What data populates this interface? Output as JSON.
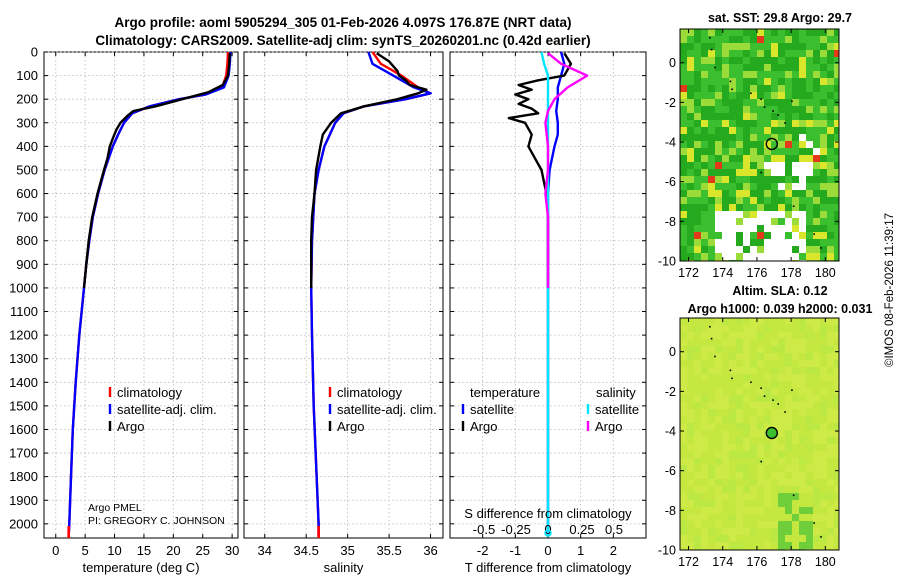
{
  "header": {
    "title_line1": "Argo profile: aoml 5905294_305 01-Feb-2026 4.097S 176.87E (NRT data)",
    "title_line2": "Climatology: CARS2009. Satellite-adj clim: synTS_20260201.nc (0.42d earlier)"
  },
  "credit": {
    "line1": "Argo PMEL",
    "line2": "PI: GREGORY C. JOHNSON"
  },
  "side_stamp": "©IMOS 08-Feb-2026 11:39:17",
  "colors": {
    "climatology": "#ff0000",
    "satellite_adj": "#0000ff",
    "argo": "#000000",
    "salinity_satellite": "#00e5ff",
    "salinity_argo": "#ff00ff"
  },
  "chart_data": [
    {
      "type": "line",
      "name": "temperature",
      "xlabel": "temperature (deg C)",
      "ylabel": "",
      "xlim": [
        -2,
        31
      ],
      "ylim": [
        2060,
        0
      ],
      "xticks": [
        0,
        5,
        10,
        15,
        20,
        25,
        30
      ],
      "xtick_labels": [
        "0",
        "5",
        "10",
        "15",
        "20",
        "25",
        "30"
      ],
      "yticks": [
        0,
        100,
        200,
        300,
        400,
        500,
        600,
        700,
        800,
        900,
        1000,
        1100,
        1200,
        1300,
        1400,
        1500,
        1600,
        1700,
        1800,
        1900,
        2000
      ],
      "ytick_labels": [
        "0",
        "100",
        "200",
        "300",
        "400",
        "500",
        "600",
        "700",
        "800",
        "900",
        "1000",
        "1100",
        "1200",
        "1300",
        "1400",
        "1500",
        "1600",
        "1700",
        "1800",
        "1900",
        "2000"
      ],
      "legend": [
        "climatology",
        "satellite-adj. clim.",
        "Argo"
      ],
      "legend_position": "lower-right",
      "series": [
        {
          "name": "climatology",
          "color": "#ff0000",
          "depth": [
            0,
            50,
            100,
            150,
            180,
            200,
            230,
            260,
            300,
            350,
            400,
            500,
            600,
            700,
            800,
            900,
            1000,
            1200,
            1400,
            1600,
            1800,
            2000,
            2050
          ],
          "values": [
            29.3,
            29.2,
            29.0,
            28.3,
            25.5,
            21.0,
            16.0,
            13.0,
            11.6,
            10.6,
            9.7,
            8.3,
            7.2,
            6.3,
            5.7,
            5.2,
            4.8,
            4.0,
            3.4,
            2.9,
            2.6,
            2.3,
            2.2
          ]
        },
        {
          "name": "satellite-adj. clim.",
          "color": "#0000ff",
          "depth": [
            0,
            50,
            100,
            150,
            180,
            200,
            230,
            260,
            300,
            350,
            400,
            500,
            600,
            700,
            800,
            900,
            1000,
            1200,
            1400,
            1600,
            1800,
            2000,
            2050
          ],
          "values": [
            29.7,
            29.6,
            29.4,
            28.6,
            25.5,
            21.0,
            16.0,
            13.0,
            11.6,
            10.6,
            9.7,
            8.3,
            7.2,
            6.3,
            5.7,
            5.2,
            4.8,
            4.0,
            3.4,
            2.9,
            2.6,
            2.3,
            2.2
          ]
        },
        {
          "name": "Argo",
          "color": "#000000",
          "depth": [
            5,
            50,
            100,
            140,
            170,
            200,
            230,
            250,
            270,
            300,
            330,
            360,
            400,
            450,
            500,
            600,
            700,
            800,
            900,
            1000
          ],
          "values": [
            29.6,
            29.5,
            29.3,
            28.4,
            26.0,
            21.5,
            17.0,
            13.2,
            12.2,
            11.0,
            10.3,
            9.8,
            9.2,
            8.8,
            8.2,
            7.1,
            6.2,
            5.6,
            5.2,
            4.8
          ]
        }
      ]
    },
    {
      "type": "line",
      "name": "salinity",
      "xlabel": "salinity",
      "ylabel": "",
      "xlim": [
        33.75,
        36.15
      ],
      "ylim": [
        2060,
        0
      ],
      "xticks": [
        34,
        34.5,
        35,
        35.5,
        36
      ],
      "xtick_labels": [
        "34",
        "34.5",
        "35",
        "35.5",
        "36"
      ],
      "legend": [
        "climatology",
        "satellite-adj. clim.",
        "Argo"
      ],
      "legend_position": "lower-right",
      "series": [
        {
          "name": "climatology",
          "color": "#ff0000",
          "depth": [
            0,
            50,
            100,
            150,
            175,
            200,
            230,
            260,
            300,
            400,
            500,
            600,
            800,
            1000,
            1200,
            1500,
            2000,
            2050
          ],
          "values": [
            35.3,
            35.4,
            35.65,
            35.85,
            36.0,
            35.7,
            35.2,
            34.95,
            34.85,
            34.72,
            34.65,
            34.6,
            34.57,
            34.56,
            34.57,
            34.59,
            34.65,
            34.65
          ]
        },
        {
          "name": "satellite-adj. clim.",
          "color": "#0000ff",
          "depth": [
            0,
            50,
            100,
            150,
            175,
            200,
            230,
            260,
            300,
            400,
            500,
            600,
            800,
            1000,
            1200,
            1500,
            2000,
            2050
          ],
          "values": [
            35.25,
            35.3,
            35.55,
            35.8,
            36.0,
            35.7,
            35.2,
            34.95,
            34.85,
            34.72,
            34.65,
            34.6,
            34.57,
            34.56,
            34.57,
            34.59,
            34.65,
            34.65
          ]
        },
        {
          "name": "Argo",
          "color": "#000000",
          "depth": [
            5,
            40,
            80,
            100,
            120,
            140,
            160,
            175,
            200,
            230,
            260,
            300,
            350,
            400,
            500,
            600,
            700,
            800,
            900,
            1000
          ],
          "values": [
            35.35,
            35.5,
            35.6,
            35.62,
            35.7,
            35.75,
            35.95,
            35.85,
            35.6,
            35.2,
            34.92,
            34.8,
            34.7,
            34.67,
            34.62,
            34.6,
            34.57,
            34.56,
            34.56,
            34.56
          ]
        }
      ]
    },
    {
      "type": "line",
      "name": "difference",
      "xlabel": "T difference from climatology",
      "top_xlabel": "S difference from climatology",
      "xlim": [
        -3,
        3
      ],
      "ylim": [
        2060,
        0
      ],
      "xticks": [
        -2,
        -1,
        0,
        1,
        2
      ],
      "xtick_labels": [
        "-2",
        "-1",
        "0",
        "1",
        "2"
      ],
      "s_xticks": [
        -0.5,
        -0.25,
        0,
        0.25,
        0.5
      ],
      "s_xtick_labels": [
        "-0.5",
        "-0.25",
        "0",
        "0.25",
        "0.5"
      ],
      "legend_temperature_title": "temperature",
      "legend_salinity_title": "salinity",
      "legend_entries": [
        "satellite",
        "Argo",
        "satellite",
        "Argo"
      ],
      "series": [
        {
          "name": "T satellite",
          "color": "#0000ff",
          "depth": [
            0,
            50,
            100,
            150,
            200,
            250,
            300,
            350,
            400,
            500,
            600,
            800,
            1000,
            1500,
            2000,
            2050
          ],
          "values": [
            0.4,
            0.5,
            0.4,
            0.3,
            0.3,
            0.25,
            0.3,
            0.3,
            0.2,
            0.05,
            0.0,
            0.0,
            0.0,
            0.0,
            0.0,
            0.0
          ]
        },
        {
          "name": "T Argo",
          "color": "#000000",
          "depth": [
            5,
            50,
            100,
            120,
            140,
            160,
            180,
            200,
            220,
            240,
            260,
            280,
            300,
            350,
            400,
            450,
            500,
            600,
            700,
            800,
            900,
            1000
          ],
          "values": [
            0.5,
            0.7,
            0.5,
            -0.3,
            -0.9,
            -0.5,
            -1.0,
            -0.6,
            -0.9,
            -0.5,
            -0.3,
            -1.2,
            -0.7,
            -0.5,
            -0.6,
            -0.4,
            -0.2,
            -0.05,
            0.0,
            0.0,
            0.0,
            0.0
          ]
        },
        {
          "name": "S satellite",
          "color": "#00e5ff",
          "depth": [
            0,
            50,
            100,
            150,
            200,
            250,
            300,
            400,
            500,
            700,
            1000,
            1500,
            2000,
            2050
          ],
          "values": [
            -0.05,
            -0.03,
            0.0,
            0.0,
            0.0,
            0.0,
            0.0,
            0.0,
            0.0,
            0.0,
            0.0,
            0.0,
            0.0,
            0.0
          ]
        },
        {
          "name": "S Argo",
          "color": "#ff00ff",
          "depth": [
            5,
            50,
            100,
            150,
            200,
            250,
            300,
            400,
            500,
            600,
            700,
            800,
            1000
          ],
          "values": [
            0.0,
            0.1,
            0.3,
            0.15,
            0.05,
            0.0,
            -0.02,
            0.0,
            0.0,
            -0.02,
            0.0,
            0.0,
            0.0
          ]
        }
      ]
    },
    {
      "type": "heatmap",
      "name": "sst-map",
      "title": "sat. SST: 29.8 Argo: 29.7",
      "xlim": [
        171.5,
        180.8
      ],
      "ylim": [
        -10,
        1.7
      ],
      "xticks": [
        172,
        174,
        176,
        178,
        180
      ],
      "xtick_labels": [
        "172",
        "174",
        "176",
        "178",
        "180"
      ],
      "yticks": [
        0,
        -2,
        -4,
        -6,
        -8,
        -10
      ],
      "ytick_labels": [
        "0",
        "-2",
        "-4",
        "-6",
        "-8",
        "-10"
      ],
      "marker": {
        "lon": 176.87,
        "lat": -4.097
      }
    },
    {
      "type": "heatmap",
      "name": "sla-map",
      "title_line1": "Altim. SLA: 0.12",
      "title_line2": "Argo h1000: 0.039 h2000: 0.031",
      "xlim": [
        171.5,
        180.8
      ],
      "ylim": [
        -10,
        1.7
      ],
      "xticks": [
        172,
        174,
        176,
        178,
        180
      ],
      "xtick_labels": [
        "172",
        "174",
        "176",
        "178",
        "180"
      ],
      "yticks": [
        0,
        -2,
        -4,
        -6,
        -8,
        -10
      ],
      "ytick_labels": [
        "0",
        "-2",
        "-4",
        "-6",
        "-8",
        "-10"
      ],
      "marker": {
        "lon": 176.87,
        "lat": -4.097
      }
    }
  ]
}
